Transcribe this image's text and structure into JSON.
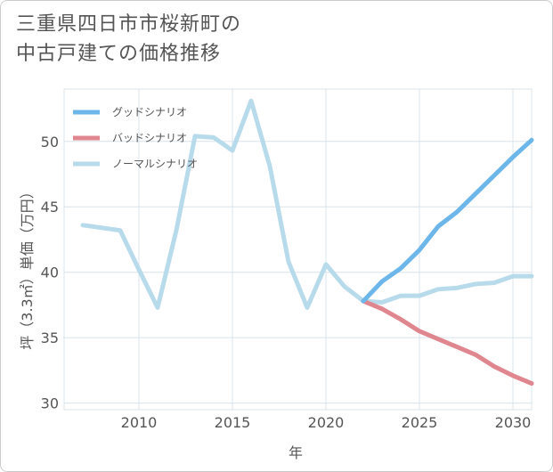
{
  "title_line1": "三重県四日市市桜新町の",
  "title_line2": "中古戸建ての価格推移",
  "chart_data": {
    "type": "line",
    "xlabel": "年",
    "ylabel": "坪（3.3㎡）単価（万円）",
    "xlim": [
      2006,
      2031
    ],
    "ylim": [
      29.5,
      54
    ],
    "xticks": [
      2010,
      2015,
      2020,
      2025,
      2030
    ],
    "yticks": [
      30,
      35,
      40,
      45,
      50
    ],
    "legend_position": "top-left",
    "series": [
      {
        "name": "グッドシナリオ",
        "color": "#6cb6ea",
        "x": [
          2022,
          2023,
          2024,
          2025,
          2026,
          2027,
          2028,
          2029,
          2030,
          2031
        ],
        "values": [
          37.8,
          39.3,
          40.3,
          41.7,
          43.5,
          44.6,
          46.0,
          47.4,
          48.8,
          50.1
        ]
      },
      {
        "name": "バッドシナリオ",
        "color": "#e0868f",
        "x": [
          2022,
          2023,
          2024,
          2025,
          2026,
          2027,
          2028,
          2029,
          2030,
          2031
        ],
        "values": [
          37.8,
          37.2,
          36.4,
          35.5,
          34.9,
          34.3,
          33.7,
          32.8,
          32.1,
          31.5
        ]
      },
      {
        "name": "ノーマルシナリオ",
        "color": "#b7dbeb",
        "x": [
          2007,
          2008,
          2009,
          2010,
          2011,
          2012,
          2013,
          2014,
          2015,
          2016,
          2017,
          2018,
          2019,
          2020,
          2021,
          2022,
          2023,
          2024,
          2025,
          2026,
          2027,
          2028,
          2029,
          2030,
          2031
        ],
        "values": [
          43.6,
          43.4,
          43.2,
          40.2,
          37.3,
          43.2,
          50.4,
          50.3,
          49.3,
          53.1,
          48.1,
          40.8,
          37.3,
          40.6,
          38.9,
          37.8,
          37.7,
          38.2,
          38.2,
          38.7,
          38.8,
          39.1,
          39.2,
          39.7,
          39.7
        ]
      }
    ]
  }
}
